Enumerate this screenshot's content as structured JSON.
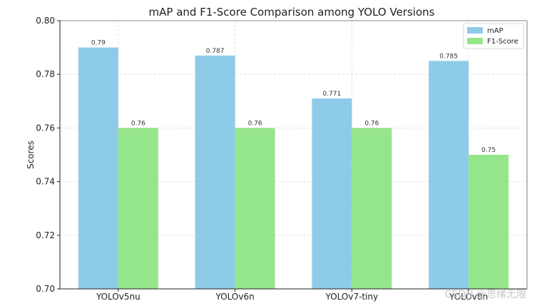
{
  "chart_data": {
    "type": "bar",
    "title": "mAP and F1-Score Comparison among YOLO Versions",
    "xlabel": "",
    "ylabel": "Scores",
    "categories": [
      "YOLOv5nu",
      "YOLOv6n",
      "YOLOv7-tiny",
      "YOLOv8n"
    ],
    "series": [
      {
        "name": "mAP",
        "values": [
          0.79,
          0.787,
          0.771,
          0.785
        ],
        "labels": [
          "0.79",
          "0.787",
          "0.771",
          "0.785"
        ],
        "color": "#8ecbe8"
      },
      {
        "name": "F1-Score",
        "values": [
          0.76,
          0.76,
          0.76,
          0.75
        ],
        "labels": [
          "0.76",
          "0.76",
          "0.76",
          "0.75"
        ],
        "color": "#95e68a"
      }
    ],
    "ylim": [
      0.7,
      0.8
    ],
    "yticks": [
      "0.70",
      "0.72",
      "0.74",
      "0.76",
      "0.78",
      "0.80"
    ],
    "grid": true,
    "legend_position": "top-right"
  },
  "watermark": "CSDN @思绪无限"
}
